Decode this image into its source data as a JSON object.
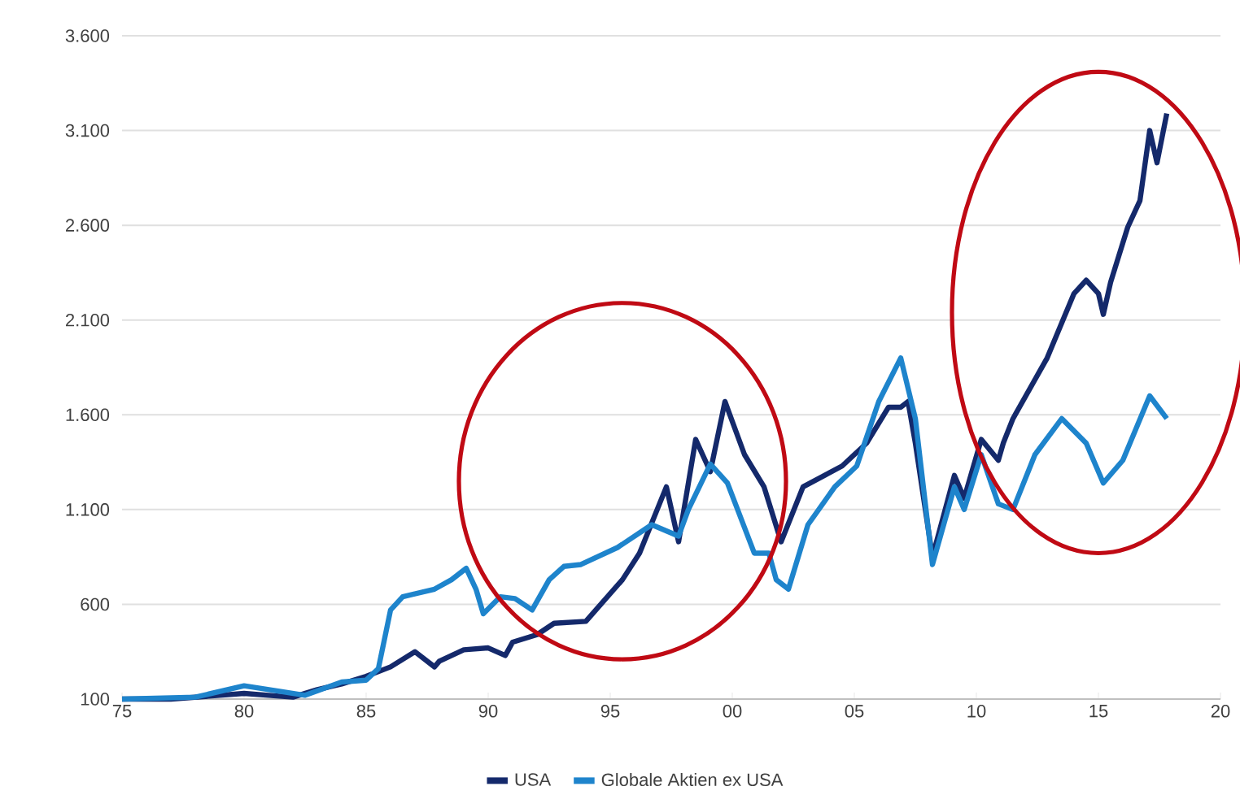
{
  "chart_data": {
    "type": "line",
    "x": [
      1975,
      1977,
      1979,
      1980,
      1981,
      1982,
      1983,
      1984,
      1985,
      1986,
      1987,
      1987.8,
      1988,
      1989,
      1990,
      1990.7,
      1991,
      1992,
      1992.7,
      1994,
      1995.5,
      1996.2,
      1997.3,
      1997.8,
      1998.5,
      1999.1,
      1999.7,
      2000.5,
      2001.3,
      2002,
      2002.9,
      2004.5,
      2005.5,
      2006.4,
      2006.9,
      2007.2,
      2007.5,
      2008.2,
      2009.1,
      2009.5,
      2010.2,
      2010.9,
      2011.1,
      2011.5,
      2012.9,
      2014,
      2014.5,
      2015,
      2015.2,
      2015.5,
      2016.2,
      2016.7,
      2017.1,
      2017.4,
      2017.8
    ],
    "series": [
      {
        "name": "USA",
        "color": "#14296b",
        "values": [
          100,
          100,
          120,
          130,
          120,
          110,
          150,
          180,
          220,
          270,
          350,
          270,
          300,
          360,
          370,
          330,
          400,
          440,
          500,
          510,
          730,
          870,
          1220,
          930,
          1470,
          1300,
          1670,
          1390,
          1220,
          930,
          1220,
          1330,
          1450,
          1640,
          1640,
          1670,
          1450,
          850,
          1280,
          1160,
          1470,
          1360,
          1450,
          1580,
          1900,
          2240,
          2310,
          2240,
          2130,
          2300,
          2590,
          2730,
          3100,
          2930,
          3190
        ]
      },
      {
        "name": "Globale Aktien ex USA",
        "color": "#1e84cc",
        "x": [
          1975,
          1978,
          1980,
          1981.5,
          1982.5,
          1984,
          1985,
          1985.5,
          1986,
          1986.5,
          1987.8,
          1988.5,
          1989.1,
          1989.5,
          1989.8,
          1990.5,
          1991.1,
          1991.8,
          1992.5,
          1993.1,
          1993.8,
          1995.3,
          1996.7,
          1997.8,
          1998.2,
          1999.1,
          1999.8,
          2000.9,
          2001.5,
          2001.8,
          2002.3,
          2003.1,
          2004.2,
          2005.1,
          2006,
          2006.9,
          2007.5,
          2008.2,
          2009.1,
          2009.5,
          2010.2,
          2010.9,
          2011.5,
          2012.4,
          2013.5,
          2014.5,
          2015.2,
          2016,
          2017.1,
          2017.8
        ],
        "values": [
          100,
          110,
          170,
          140,
          120,
          190,
          200,
          260,
          570,
          640,
          680,
          730,
          790,
          680,
          550,
          640,
          630,
          570,
          730,
          800,
          810,
          900,
          1020,
          960,
          1100,
          1340,
          1240,
          870,
          870,
          730,
          680,
          1020,
          1220,
          1330,
          1670,
          1900,
          1580,
          810,
          1220,
          1100,
          1390,
          1130,
          1100,
          1390,
          1580,
          1450,
          1240,
          1360,
          1700,
          1580
        ]
      }
    ],
    "xlim": [
      1975,
      2020
    ],
    "xticks": [
      {
        "value": 1975,
        "label": "75"
      },
      {
        "value": 1980,
        "label": "80"
      },
      {
        "value": 1985,
        "label": "85"
      },
      {
        "value": 1990,
        "label": "90"
      },
      {
        "value": 1995,
        "label": "95"
      },
      {
        "value": 2000,
        "label": "00"
      },
      {
        "value": 2005,
        "label": "05"
      },
      {
        "value": 2010,
        "label": "10"
      },
      {
        "value": 2015,
        "label": "15"
      },
      {
        "value": 2020,
        "label": "20"
      }
    ],
    "ylim": [
      100,
      3600
    ],
    "yticks": [
      {
        "value": 100,
        "label": "100"
      },
      {
        "value": 600,
        "label": "600"
      },
      {
        "value": 1100,
        "label": "1.100"
      },
      {
        "value": 1600,
        "label": "1.600"
      },
      {
        "value": 2100,
        "label": "2.100"
      },
      {
        "value": 2600,
        "label": "2.600"
      },
      {
        "value": 3100,
        "label": "3.100"
      },
      {
        "value": 3600,
        "label": "3.600"
      }
    ],
    "grid": "y",
    "legend": "bottom",
    "marker": "none",
    "line_style": "solid"
  }
}
